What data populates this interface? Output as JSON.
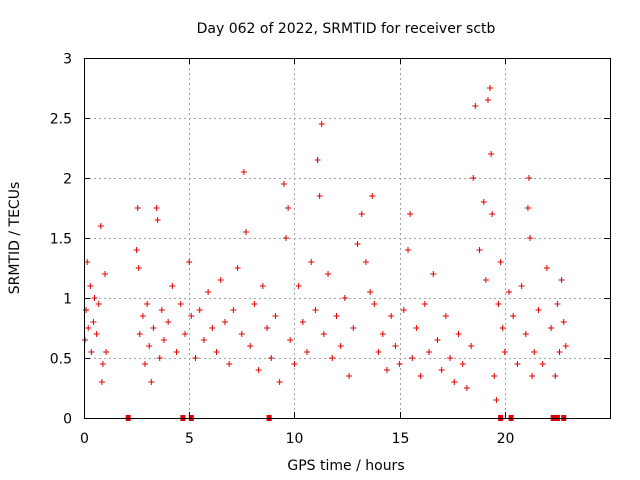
{
  "chart_data": {
    "type": "scatter",
    "title": "Day 062 of 2022, SRMTID for receiver sctb",
    "xlabel": "GPS time / hours",
    "ylabel": "SRMTID / TECUs",
    "xlim": [
      0,
      25
    ],
    "ylim": [
      0,
      3
    ],
    "xticks": [
      0,
      5,
      10,
      15,
      20
    ],
    "xtick_labels": [
      "0",
      "5",
      "10",
      "15",
      "20"
    ],
    "yticks": [
      0,
      0.5,
      1,
      1.5,
      2,
      2.5,
      3
    ],
    "ytick_labels": [
      "0",
      "0.5",
      "1",
      "1.5",
      "2",
      "2.5",
      "3"
    ],
    "grid": true,
    "marker": "+",
    "series": [
      {
        "name": "SRMTID",
        "color": "#e00000",
        "points": [
          [
            0.05,
            0.65
          ],
          [
            0.1,
            0.9
          ],
          [
            0.15,
            1.3
          ],
          [
            0.2,
            0.75
          ],
          [
            0.3,
            1.1
          ],
          [
            0.35,
            0.55
          ],
          [
            0.45,
            0.8
          ],
          [
            0.5,
            1.0
          ],
          [
            0.6,
            0.7
          ],
          [
            0.7,
            0.95
          ],
          [
            0.8,
            1.6
          ],
          [
            0.85,
            0.3
          ],
          [
            0.9,
            0.45
          ],
          [
            1.0,
            1.2
          ],
          [
            1.05,
            0.55
          ],
          [
            2.5,
            1.4
          ],
          [
            2.55,
            1.75
          ],
          [
            2.6,
            1.25
          ],
          [
            2.65,
            0.7
          ],
          [
            2.8,
            0.85
          ],
          [
            2.9,
            0.45
          ],
          [
            3.0,
            0.95
          ],
          [
            3.1,
            0.6
          ],
          [
            3.2,
            0.3
          ],
          [
            3.3,
            0.75
          ],
          [
            3.45,
            1.75
          ],
          [
            3.5,
            1.65
          ],
          [
            3.6,
            0.5
          ],
          [
            3.7,
            0.9
          ],
          [
            3.8,
            0.65
          ],
          [
            4.0,
            0.8
          ],
          [
            4.2,
            1.1
          ],
          [
            4.4,
            0.55
          ],
          [
            4.6,
            0.95
          ],
          [
            4.8,
            0.7
          ],
          [
            5.0,
            1.3
          ],
          [
            5.1,
            0.85
          ],
          [
            5.3,
            0.5
          ],
          [
            5.5,
            0.9
          ],
          [
            5.7,
            0.65
          ],
          [
            5.9,
            1.05
          ],
          [
            6.1,
            0.75
          ],
          [
            6.3,
            0.55
          ],
          [
            6.5,
            1.15
          ],
          [
            6.7,
            0.8
          ],
          [
            6.9,
            0.45
          ],
          [
            7.1,
            0.9
          ],
          [
            7.3,
            1.25
          ],
          [
            7.5,
            0.7
          ],
          [
            7.6,
            2.05
          ],
          [
            7.7,
            1.55
          ],
          [
            7.9,
            0.6
          ],
          [
            8.1,
            0.95
          ],
          [
            8.3,
            0.4
          ],
          [
            8.5,
            1.1
          ],
          [
            8.7,
            0.75
          ],
          [
            8.9,
            0.5
          ],
          [
            9.1,
            0.85
          ],
          [
            9.3,
            0.3
          ],
          [
            9.5,
            1.95
          ],
          [
            9.6,
            1.5
          ],
          [
            9.7,
            1.75
          ],
          [
            9.8,
            0.65
          ],
          [
            10.0,
            0.45
          ],
          [
            10.2,
            1.1
          ],
          [
            10.4,
            0.8
          ],
          [
            10.6,
            0.55
          ],
          [
            10.8,
            1.3
          ],
          [
            11.0,
            0.9
          ],
          [
            11.1,
            2.15
          ],
          [
            11.2,
            1.85
          ],
          [
            11.3,
            2.45
          ],
          [
            11.4,
            0.7
          ],
          [
            11.6,
            1.2
          ],
          [
            11.8,
            0.5
          ],
          [
            12.0,
            0.85
          ],
          [
            12.2,
            0.6
          ],
          [
            12.4,
            1.0
          ],
          [
            12.6,
            0.35
          ],
          [
            12.8,
            0.75
          ],
          [
            13.0,
            1.45
          ],
          [
            13.2,
            1.7
          ],
          [
            13.4,
            1.3
          ],
          [
            13.6,
            1.05
          ],
          [
            13.7,
            1.85
          ],
          [
            13.8,
            0.95
          ],
          [
            14.0,
            0.55
          ],
          [
            14.2,
            0.7
          ],
          [
            14.4,
            0.4
          ],
          [
            14.6,
            0.85
          ],
          [
            14.8,
            0.6
          ],
          [
            15.0,
            0.45
          ],
          [
            15.2,
            0.9
          ],
          [
            15.4,
            1.4
          ],
          [
            15.5,
            1.7
          ],
          [
            15.6,
            0.5
          ],
          [
            15.8,
            0.75
          ],
          [
            16.0,
            0.35
          ],
          [
            16.2,
            0.95
          ],
          [
            16.4,
            0.55
          ],
          [
            16.6,
            1.2
          ],
          [
            16.8,
            0.65
          ],
          [
            17.0,
            0.4
          ],
          [
            17.2,
            0.85
          ],
          [
            17.4,
            0.5
          ],
          [
            17.6,
            0.3
          ],
          [
            17.8,
            0.7
          ],
          [
            18.0,
            0.45
          ],
          [
            18.2,
            0.25
          ],
          [
            18.4,
            0.6
          ],
          [
            18.5,
            2.0
          ],
          [
            18.6,
            2.6
          ],
          [
            18.8,
            1.4
          ],
          [
            19.0,
            1.8
          ],
          [
            19.1,
            1.15
          ],
          [
            19.2,
            2.65
          ],
          [
            19.3,
            2.75
          ],
          [
            19.35,
            2.2
          ],
          [
            19.4,
            1.7
          ],
          [
            19.5,
            0.35
          ],
          [
            19.6,
            0.15
          ],
          [
            19.7,
            0.95
          ],
          [
            19.8,
            1.3
          ],
          [
            19.9,
            0.75
          ],
          [
            20.0,
            0.55
          ],
          [
            20.2,
            1.05
          ],
          [
            20.4,
            0.85
          ],
          [
            20.6,
            0.45
          ],
          [
            20.8,
            1.1
          ],
          [
            21.0,
            0.7
          ],
          [
            21.1,
            1.75
          ],
          [
            21.15,
            2.0
          ],
          [
            21.2,
            1.5
          ],
          [
            21.3,
            0.35
          ],
          [
            21.4,
            0.55
          ],
          [
            21.6,
            0.9
          ],
          [
            21.8,
            0.45
          ],
          [
            22.0,
            1.25
          ],
          [
            22.2,
            0.75
          ],
          [
            22.4,
            0.35
          ],
          [
            22.5,
            0.95
          ],
          [
            22.6,
            0.55
          ],
          [
            22.7,
            1.15
          ],
          [
            22.8,
            0.8
          ],
          [
            22.9,
            0.6
          ]
        ]
      }
    ],
    "zero_markers": [
      2.1,
      4.7,
      5.1,
      8.8,
      19.8,
      20.3,
      22.3,
      22.5,
      22.8
    ]
  }
}
